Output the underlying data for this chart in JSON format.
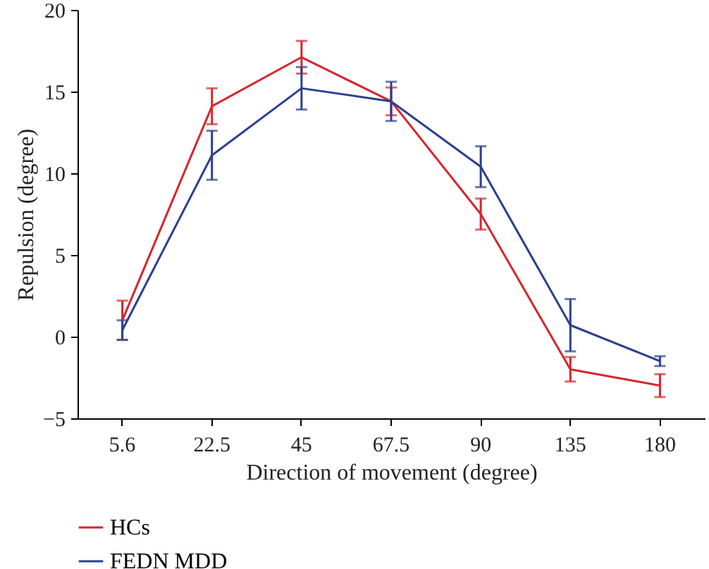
{
  "chart_data": {
    "type": "line",
    "xlabel": "Direction of movement (degree)",
    "ylabel": "Repulsion (degree)",
    "categories": [
      "5.6",
      "22.5",
      "45",
      "67.5",
      "90",
      "135",
      "180"
    ],
    "series": [
      {
        "name": "HCs",
        "color": "#d7262e",
        "values": [
          1.0,
          14.1,
          17.1,
          14.4,
          7.5,
          -2.0,
          -3.0
        ],
        "errors": [
          1.2,
          1.1,
          1.0,
          0.85,
          0.95,
          0.75,
          0.7
        ]
      },
      {
        "name": "FEDN MDD",
        "color": "#2b3f8f",
        "values": [
          0.4,
          11.1,
          15.2,
          14.4,
          10.4,
          0.7,
          -1.5
        ],
        "errors": [
          0.6,
          1.5,
          1.3,
          1.2,
          1.25,
          1.6,
          0.3
        ]
      }
    ],
    "ylim": [
      -5,
      20
    ],
    "yticks": [
      -5,
      0,
      5,
      10,
      15,
      20
    ],
    "grid": false,
    "legend": "bottom left"
  }
}
